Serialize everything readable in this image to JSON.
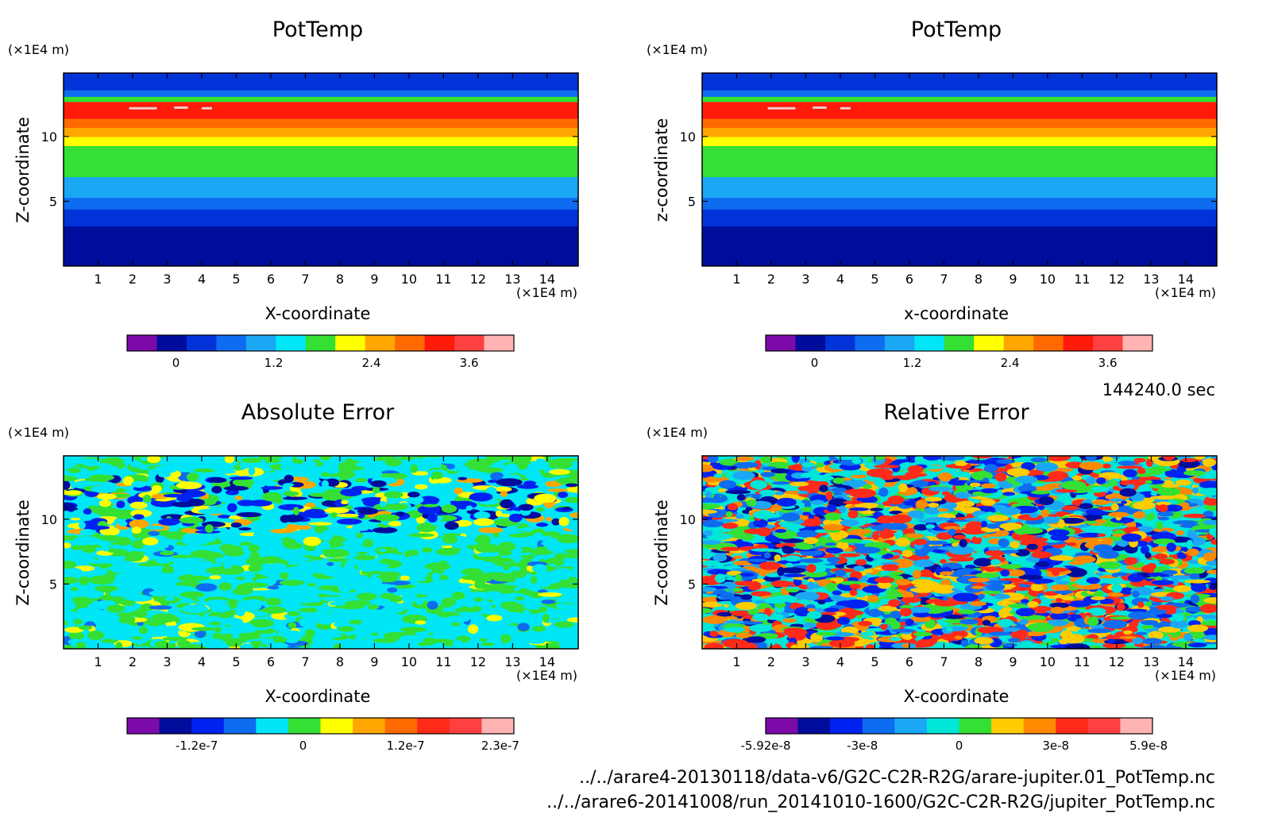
{
  "chart_data": [
    {
      "type": "heatmap",
      "title": "PotTemp",
      "xlabel": "X-coordinate",
      "ylabel": "Z-coordinate",
      "x_unit": "(×1E4 m)",
      "y_unit": "(×1E4 m)",
      "x_ticks": [
        "1",
        "2",
        "3",
        "4",
        "5",
        "6",
        "7",
        "8",
        "9",
        "10",
        "11",
        "12",
        "13",
        "14"
      ],
      "y_ticks": [
        "5",
        "10"
      ],
      "xlim": [
        0,
        14.9
      ],
      "ylim": [
        0,
        14.9
      ],
      "colorbar": {
        "tick_labels": [
          "0",
          "1.2",
          "2.4",
          "3.6"
        ],
        "tick_values": [
          0,
          1.2,
          2.4,
          3.6
        ],
        "range": [
          -0.6,
          4.15
        ],
        "colors": [
          "#7b0aa8",
          "#000c9c",
          "#0033d8",
          "#0d6cf0",
          "#1aa8f5",
          "#00e6f7",
          "#33e033",
          "#ffff00",
          "#ffa700",
          "#ff6a00",
          "#ff1a0a",
          "#ff4040",
          "#ffb3b3"
        ]
      },
      "bands": [
        {
          "z": [
            0.0,
            3.1
          ],
          "value": 0.0
        },
        {
          "z": [
            3.1,
            3.7
          ],
          "value": 0.2
        },
        {
          "z": [
            3.7,
            4.4
          ],
          "value": 0.4
        },
        {
          "z": [
            4.4,
            5.3
          ],
          "value": 0.8
        },
        {
          "z": [
            5.3,
            6.9
          ],
          "value": 1.2
        },
        {
          "z": [
            6.9,
            9.3
          ],
          "value": 1.8
        },
        {
          "z": [
            9.3,
            10.0
          ],
          "value": 2.3
        },
        {
          "z": [
            10.0,
            10.7
          ],
          "value": 2.6
        },
        {
          "z": [
            10.7,
            11.4
          ],
          "value": 2.9
        },
        {
          "z": [
            11.4,
            12.7
          ],
          "value": 3.3
        },
        {
          "z": [
            12.7,
            13.1
          ],
          "value": 1.8
        },
        {
          "z": [
            13.1,
            13.6
          ],
          "value": 0.8
        },
        {
          "z": [
            13.6,
            14.9
          ],
          "value": 0.2
        }
      ]
    },
    {
      "type": "heatmap",
      "title": "PotTemp",
      "xlabel": "x-coordinate",
      "ylabel": "z-coordinate",
      "x_unit": "(×1E4 m)",
      "y_unit": "(×1E4 m)",
      "x_ticks": [
        "1",
        "2",
        "3",
        "4",
        "5",
        "6",
        "7",
        "8",
        "9",
        "10",
        "11",
        "12",
        "13",
        "14"
      ],
      "y_ticks": [
        "5",
        "10"
      ],
      "xlim": [
        0,
        14.9
      ],
      "ylim": [
        0,
        14.9
      ],
      "colorbar": {
        "tick_labels": [
          "0",
          "1.2",
          "2.4",
          "3.6"
        ],
        "tick_values": [
          0,
          1.2,
          2.4,
          3.6
        ],
        "range": [
          -0.6,
          4.15
        ],
        "colors": [
          "#7b0aa8",
          "#000c9c",
          "#0033d8",
          "#0d6cf0",
          "#1aa8f5",
          "#00e6f7",
          "#33e033",
          "#ffff00",
          "#ffa700",
          "#ff6a00",
          "#ff1a0a",
          "#ff4040",
          "#ffb3b3"
        ]
      },
      "bands": [
        {
          "z": [
            0.0,
            3.1
          ],
          "value": 0.0
        },
        {
          "z": [
            3.1,
            3.7
          ],
          "value": 0.2
        },
        {
          "z": [
            3.7,
            4.4
          ],
          "value": 0.4
        },
        {
          "z": [
            4.4,
            5.3
          ],
          "value": 0.8
        },
        {
          "z": [
            5.3,
            6.9
          ],
          "value": 1.2
        },
        {
          "z": [
            6.9,
            9.3
          ],
          "value": 1.8
        },
        {
          "z": [
            9.3,
            10.0
          ],
          "value": 2.3
        },
        {
          "z": [
            10.0,
            10.7
          ],
          "value": 2.6
        },
        {
          "z": [
            10.7,
            11.4
          ],
          "value": 2.9
        },
        {
          "z": [
            11.4,
            12.7
          ],
          "value": 3.3
        },
        {
          "z": [
            12.7,
            13.1
          ],
          "value": 1.8
        },
        {
          "z": [
            13.1,
            13.6
          ],
          "value": 0.8
        },
        {
          "z": [
            13.6,
            14.9
          ],
          "value": 0.2
        }
      ]
    },
    {
      "type": "heatmap",
      "title": "Absolute Error",
      "xlabel": "X-coordinate",
      "ylabel": "Z-coordinate",
      "x_unit": "(×1E4 m)",
      "y_unit": "(×1E4 m)",
      "x_ticks": [
        "1",
        "2",
        "3",
        "4",
        "5",
        "6",
        "7",
        "8",
        "9",
        "10",
        "11",
        "12",
        "13",
        "14"
      ],
      "y_ticks": [
        "5",
        "10"
      ],
      "xlim": [
        0,
        14.9
      ],
      "ylim": [
        0,
        14.9
      ],
      "colorbar": {
        "tick_labels": [
          "-1.2e-7",
          "0",
          "1.2e-7",
          "2.3e-7"
        ],
        "colors": [
          "#7b0aa8",
          "#000c9c",
          "#0022f0",
          "#0d6cf0",
          "#00e6f7",
          "#33e033",
          "#ffff00",
          "#ffa700",
          "#ff6a00",
          "#ff2a1a",
          "#ff4040",
          "#ffb3b3"
        ]
      },
      "field": "noisy error field; values concentrated near 0 with stronger deviations between z=9 and z=13"
    },
    {
      "type": "heatmap",
      "title": "Relative Error",
      "xlabel": "X-coordinate",
      "ylabel": "Z-coordinate",
      "x_unit": "(×1E4 m)",
      "y_unit": "(×1E4 m)",
      "x_ticks": [
        "1",
        "2",
        "3",
        "4",
        "5",
        "6",
        "7",
        "8",
        "9",
        "10",
        "11",
        "12",
        "13",
        "14"
      ],
      "y_ticks": [
        "5",
        "10"
      ],
      "xlim": [
        0,
        14.9
      ],
      "ylim": [
        0,
        14.9
      ],
      "colorbar": {
        "tick_labels": [
          "-5.92e-8",
          "-3e-8",
          "0",
          "3e-8",
          "5.9e-8"
        ],
        "colors": [
          "#7b0aa8",
          "#000c9c",
          "#0022f0",
          "#0d6cf0",
          "#1aa8f5",
          "#00e6d8",
          "#33e033",
          "#ffcc00",
          "#ff8a00",
          "#ff2a1a",
          "#ff4040",
          "#ffb3b3"
        ]
      },
      "field": "noisy error field spanning the full colour range across the domain"
    }
  ],
  "annotations": {
    "time": "144240.0 sec",
    "file1": "../../arare4-20130118/data-v6/G2C-C2R-R2G/arare-jupiter.01_PotTemp.nc",
    "file2": "../../arare6-20141008/run_20141010-1600/G2C-C2R-R2G/jupiter_PotTemp.nc"
  }
}
